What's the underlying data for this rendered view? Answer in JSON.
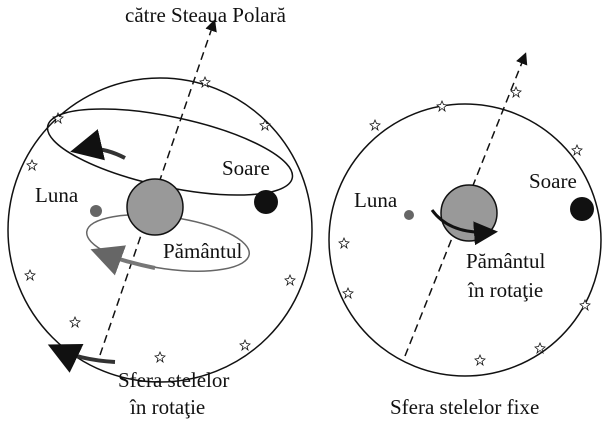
{
  "axis_label": "către Steaua Polară",
  "left": {
    "sun": "Soare",
    "moon": "Luna",
    "earth": "Pământul",
    "sphere": [
      "Sfera stelelor",
      "în rotaţie"
    ]
  },
  "right": {
    "sun": "Soare",
    "moon": "Luna",
    "earth": [
      "Pământul",
      "în rotaţie"
    ],
    "sphere": "Sfera stelelor fixe"
  }
}
